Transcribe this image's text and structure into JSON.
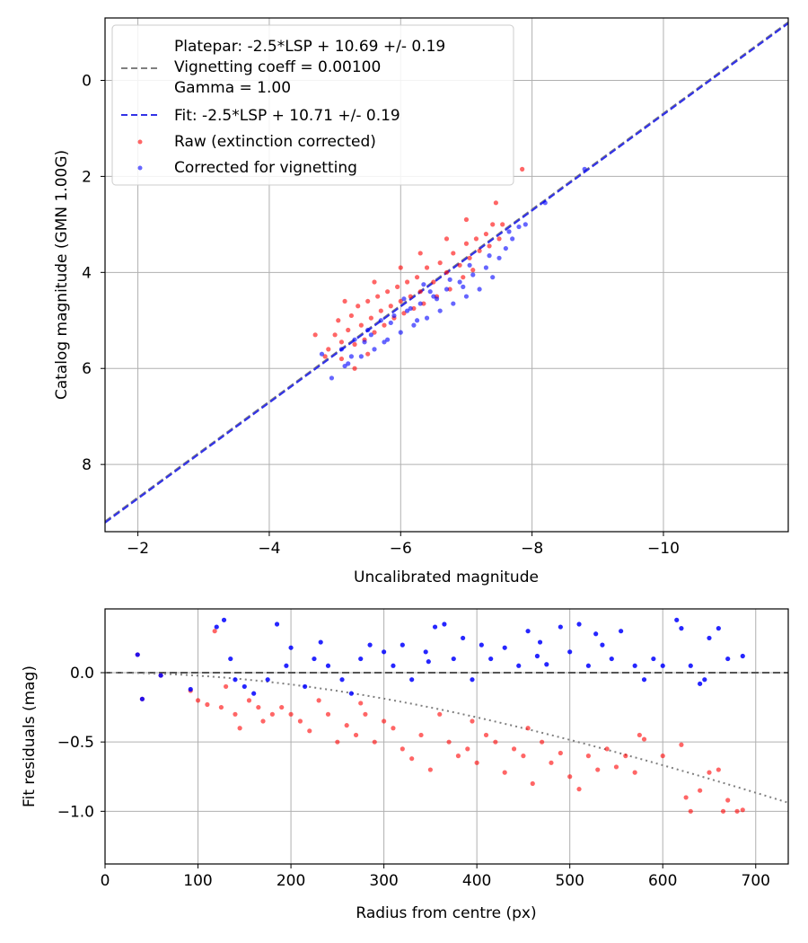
{
  "chart_data": [
    {
      "type": "scatter",
      "xlabel": "Uncalibrated magnitude",
      "ylabel": "Catalog magnitude (GMN 1.00G)",
      "xlim": [
        -1.5,
        -11.9
      ],
      "ylim": [
        9.4,
        -1.3
      ],
      "xticks": [
        -2,
        -4,
        -6,
        -8,
        -10
      ],
      "xtick_labels": [
        "−2",
        "−4",
        "−6",
        "−8",
        "−10"
      ],
      "yticks": [
        0,
        2,
        4,
        6,
        8
      ],
      "ytick_labels": [
        "0",
        "2",
        "4",
        "6",
        "8"
      ],
      "grid": true,
      "legend_position": "top-left",
      "legend": [
        {
          "label_lines": [
            "Platepar: -2.5*LSP + 10.69 +/- 0.19",
            "Vignetting coeff = 0.00100",
            "Gamma = 1.00"
          ],
          "style": "dashed",
          "color": "#7f7f7f"
        },
        {
          "label_lines": [
            "Fit: -2.5*LSP + 10.71 +/- 0.19"
          ],
          "style": "dashed",
          "color": "#3232e6"
        },
        {
          "label_lines": [
            "Raw (extinction corrected)"
          ],
          "style": "marker",
          "color": "#ff0000"
        },
        {
          "label_lines": [
            "Corrected for vignetting"
          ],
          "style": "marker",
          "color": "#0000ff"
        }
      ],
      "lines": [
        {
          "name": "Platepar",
          "slope": 1.0,
          "intercept": 10.69,
          "color": "#7f7f7f"
        },
        {
          "name": "Fit",
          "slope": 1.0,
          "intercept": 10.71,
          "color": "#3232e6"
        }
      ],
      "series": [
        {
          "name": "Raw (extinction corrected)",
          "color": "#ff0000",
          "points": [
            [
              -4.7,
              5.3
            ],
            [
              -4.9,
              5.6
            ],
            [
              -5.0,
              5.3
            ],
            [
              -5.05,
              5.0
            ],
            [
              -5.1,
              5.45
            ],
            [
              -5.2,
              5.2
            ],
            [
              -5.25,
              4.9
            ],
            [
              -5.3,
              5.5
            ],
            [
              -5.35,
              4.7
            ],
            [
              -5.4,
              5.1
            ],
            [
              -5.45,
              5.4
            ],
            [
              -5.5,
              4.6
            ],
            [
              -5.55,
              4.95
            ],
            [
              -5.6,
              5.25
            ],
            [
              -5.65,
              4.5
            ],
            [
              -5.7,
              4.8
            ],
            [
              -5.75,
              5.1
            ],
            [
              -5.8,
              4.4
            ],
            [
              -5.85,
              4.7
            ],
            [
              -5.9,
              4.95
            ],
            [
              -5.95,
              4.3
            ],
            [
              -6.0,
              4.6
            ],
            [
              -6.05,
              4.85
            ],
            [
              -6.1,
              4.2
            ],
            [
              -6.15,
              4.5
            ],
            [
              -6.2,
              4.75
            ],
            [
              -6.25,
              4.1
            ],
            [
              -6.3,
              4.4
            ],
            [
              -6.35,
              4.65
            ],
            [
              -6.4,
              3.9
            ],
            [
              -6.5,
              4.2
            ],
            [
              -6.55,
              4.5
            ],
            [
              -6.6,
              3.8
            ],
            [
              -6.7,
              4.0
            ],
            [
              -6.75,
              4.35
            ],
            [
              -6.8,
              3.6
            ],
            [
              -6.9,
              3.85
            ],
            [
              -6.95,
              4.1
            ],
            [
              -7.0,
              3.4
            ],
            [
              -7.05,
              3.7
            ],
            [
              -7.1,
              3.95
            ],
            [
              -7.15,
              3.3
            ],
            [
              -7.2,
              3.55
            ],
            [
              -7.3,
              3.2
            ],
            [
              -7.35,
              3.45
            ],
            [
              -7.4,
              3.0
            ],
            [
              -7.45,
              2.55
            ],
            [
              -7.5,
              3.3
            ],
            [
              -7.55,
              3.0
            ],
            [
              -7.85,
              1.85
            ],
            [
              -5.1,
              5.8
            ],
            [
              -5.3,
              6.0
            ],
            [
              -5.5,
              5.7
            ],
            [
              -4.85,
              5.75
            ],
            [
              -5.15,
              4.6
            ],
            [
              -5.6,
              4.2
            ],
            [
              -6.0,
              3.9
            ],
            [
              -6.3,
              3.6
            ],
            [
              -6.7,
              3.3
            ],
            [
              -7.0,
              2.9
            ]
          ]
        },
        {
          "name": "Corrected for vignetting",
          "color": "#0000ff",
          "points": [
            [
              -4.8,
              5.7
            ],
            [
              -4.95,
              6.2
            ],
            [
              -5.1,
              5.6
            ],
            [
              -5.2,
              5.9
            ],
            [
              -5.3,
              5.4
            ],
            [
              -5.4,
              5.75
            ],
            [
              -5.5,
              5.2
            ],
            [
              -5.6,
              5.6
            ],
            [
              -5.7,
              5.0
            ],
            [
              -5.8,
              5.4
            ],
            [
              -5.9,
              4.9
            ],
            [
              -6.0,
              5.25
            ],
            [
              -6.1,
              4.8
            ],
            [
              -6.2,
              5.1
            ],
            [
              -6.3,
              4.65
            ],
            [
              -6.4,
              4.95
            ],
            [
              -6.5,
              4.5
            ],
            [
              -6.6,
              4.8
            ],
            [
              -6.7,
              4.35
            ],
            [
              -6.8,
              4.65
            ],
            [
              -6.9,
              4.2
            ],
            [
              -7.0,
              4.5
            ],
            [
              -7.1,
              4.05
            ],
            [
              -7.2,
              4.35
            ],
            [
              -7.3,
              3.9
            ],
            [
              -7.4,
              4.1
            ],
            [
              -7.5,
              3.7
            ],
            [
              -7.6,
              3.5
            ],
            [
              -7.7,
              3.3
            ],
            [
              -7.8,
              3.05
            ],
            [
              -7.9,
              3.0
            ],
            [
              -8.2,
              2.55
            ],
            [
              -8.8,
              1.85
            ],
            [
              -5.55,
              5.3
            ],
            [
              -5.85,
              5.05
            ],
            [
              -6.15,
              4.75
            ],
            [
              -6.45,
              4.4
            ],
            [
              -6.75,
              4.15
            ],
            [
              -7.05,
              3.85
            ],
            [
              -5.25,
              5.75
            ],
            [
              -5.75,
              5.45
            ],
            [
              -6.25,
              5.0
            ],
            [
              -6.55,
              4.55
            ],
            [
              -6.95,
              4.3
            ],
            [
              -7.35,
              3.65
            ],
            [
              -7.65,
              3.15
            ],
            [
              -6.05,
              4.55
            ],
            [
              -5.45,
              5.45
            ],
            [
              -5.15,
              5.95
            ],
            [
              -6.35,
              4.25
            ]
          ]
        }
      ]
    },
    {
      "type": "scatter",
      "xlabel": "Radius from centre (px)",
      "ylabel": "Fit residuals (mag)",
      "xlim": [
        0,
        735
      ],
      "ylim": [
        -1.38,
        0.46
      ],
      "xticks": [
        0,
        100,
        200,
        300,
        400,
        500,
        600,
        700
      ],
      "xtick_labels": [
        "0",
        "100",
        "200",
        "300",
        "400",
        "500",
        "600",
        "700"
      ],
      "yticks": [
        0.0,
        -0.5,
        -1.0
      ],
      "ytick_labels": [
        "0.0",
        "−0.5",
        "−1.0"
      ],
      "grid": true,
      "lines": [
        {
          "name": "zero",
          "style": "dashed",
          "color": "#555555"
        },
        {
          "name": "vignetting model",
          "style": "dotted",
          "color": "#7f7f7f",
          "coefficient": 0.001
        }
      ],
      "series": [
        {
          "name": "Raw (extinction corrected)",
          "color": "#ff0000",
          "points": [
            [
              35,
              0.13
            ],
            [
              40,
              -0.19
            ],
            [
              60,
              -0.02
            ],
            [
              92,
              -0.13
            ],
            [
              100,
              -0.2
            ],
            [
              110,
              -0.23
            ],
            [
              118,
              0.3
            ],
            [
              125,
              -0.25
            ],
            [
              130,
              -0.1
            ],
            [
              140,
              -0.3
            ],
            [
              145,
              -0.4
            ],
            [
              155,
              -0.2
            ],
            [
              165,
              -0.25
            ],
            [
              170,
              -0.35
            ],
            [
              180,
              -0.3
            ],
            [
              190,
              -0.25
            ],
            [
              200,
              -0.3
            ],
            [
              210,
              -0.35
            ],
            [
              220,
              -0.42
            ],
            [
              230,
              -0.2
            ],
            [
              240,
              -0.3
            ],
            [
              250,
              -0.5
            ],
            [
              260,
              -0.38
            ],
            [
              270,
              -0.45
            ],
            [
              280,
              -0.3
            ],
            [
              290,
              -0.5
            ],
            [
              300,
              -0.35
            ],
            [
              310,
              -0.4
            ],
            [
              320,
              -0.55
            ],
            [
              330,
              -0.62
            ],
            [
              340,
              -0.45
            ],
            [
              350,
              -0.7
            ],
            [
              360,
              -0.3
            ],
            [
              370,
              -0.5
            ],
            [
              380,
              -0.6
            ],
            [
              390,
              -0.55
            ],
            [
              400,
              -0.65
            ],
            [
              410,
              -0.45
            ],
            [
              420,
              -0.5
            ],
            [
              430,
              -0.72
            ],
            [
              440,
              -0.55
            ],
            [
              450,
              -0.6
            ],
            [
              460,
              -0.8
            ],
            [
              470,
              -0.5
            ],
            [
              480,
              -0.65
            ],
            [
              490,
              -0.58
            ],
            [
              500,
              -0.75
            ],
            [
              510,
              -0.84
            ],
            [
              520,
              -0.6
            ],
            [
              530,
              -0.7
            ],
            [
              540,
              -0.55
            ],
            [
              550,
              -0.68
            ],
            [
              560,
              -0.6
            ],
            [
              570,
              -0.72
            ],
            [
              580,
              -0.48
            ],
            [
              600,
              -0.6
            ],
            [
              620,
              -0.52
            ],
            [
              625,
              -0.9
            ],
            [
              630,
              -1.0
            ],
            [
              640,
              -0.85
            ],
            [
              650,
              -0.72
            ],
            [
              660,
              -0.7
            ],
            [
              665,
              -1.0
            ],
            [
              670,
              -0.92
            ],
            [
              680,
              -1.0
            ],
            [
              686,
              -0.99
            ],
            [
              575,
              -0.45
            ],
            [
              455,
              -0.4
            ],
            [
              395,
              -0.35
            ],
            [
              275,
              -0.22
            ]
          ]
        },
        {
          "name": "Corrected for vignetting",
          "color": "#0000ff",
          "points": [
            [
              35,
              0.13
            ],
            [
              40,
              -0.19
            ],
            [
              60,
              -0.02
            ],
            [
              92,
              -0.12
            ],
            [
              120,
              0.33
            ],
            [
              128,
              0.38
            ],
            [
              135,
              0.1
            ],
            [
              140,
              -0.05
            ],
            [
              150,
              -0.1
            ],
            [
              160,
              -0.15
            ],
            [
              175,
              -0.05
            ],
            [
              185,
              0.35
            ],
            [
              195,
              0.05
            ],
            [
              200,
              0.18
            ],
            [
              215,
              -0.1
            ],
            [
              225,
              0.1
            ],
            [
              240,
              0.05
            ],
            [
              255,
              -0.05
            ],
            [
              265,
              -0.15
            ],
            [
              275,
              0.1
            ],
            [
              285,
              0.2
            ],
            [
              300,
              0.15
            ],
            [
              310,
              0.05
            ],
            [
              320,
              0.2
            ],
            [
              330,
              -0.05
            ],
            [
              345,
              0.15
            ],
            [
              355,
              0.33
            ],
            [
              365,
              0.35
            ],
            [
              375,
              0.1
            ],
            [
              385,
              0.25
            ],
            [
              395,
              -0.05
            ],
            [
              405,
              0.2
            ],
            [
              415,
              0.1
            ],
            [
              430,
              0.18
            ],
            [
              445,
              0.05
            ],
            [
              455,
              0.3
            ],
            [
              465,
              0.12
            ],
            [
              475,
              0.06
            ],
            [
              490,
              0.33
            ],
            [
              500,
              0.15
            ],
            [
              510,
              0.35
            ],
            [
              520,
              0.05
            ],
            [
              535,
              0.2
            ],
            [
              545,
              0.1
            ],
            [
              555,
              0.3
            ],
            [
              570,
              0.05
            ],
            [
              580,
              -0.05
            ],
            [
              590,
              0.1
            ],
            [
              600,
              0.05
            ],
            [
              615,
              0.38
            ],
            [
              620,
              0.32
            ],
            [
              630,
              0.05
            ],
            [
              640,
              -0.08
            ],
            [
              645,
              -0.05
            ],
            [
              650,
              0.25
            ],
            [
              660,
              0.32
            ],
            [
              670,
              0.1
            ],
            [
              686,
              0.12
            ],
            [
              232,
              0.22
            ],
            [
              348,
              0.08
            ],
            [
              468,
              0.22
            ],
            [
              528,
              0.28
            ]
          ]
        }
      ]
    }
  ]
}
